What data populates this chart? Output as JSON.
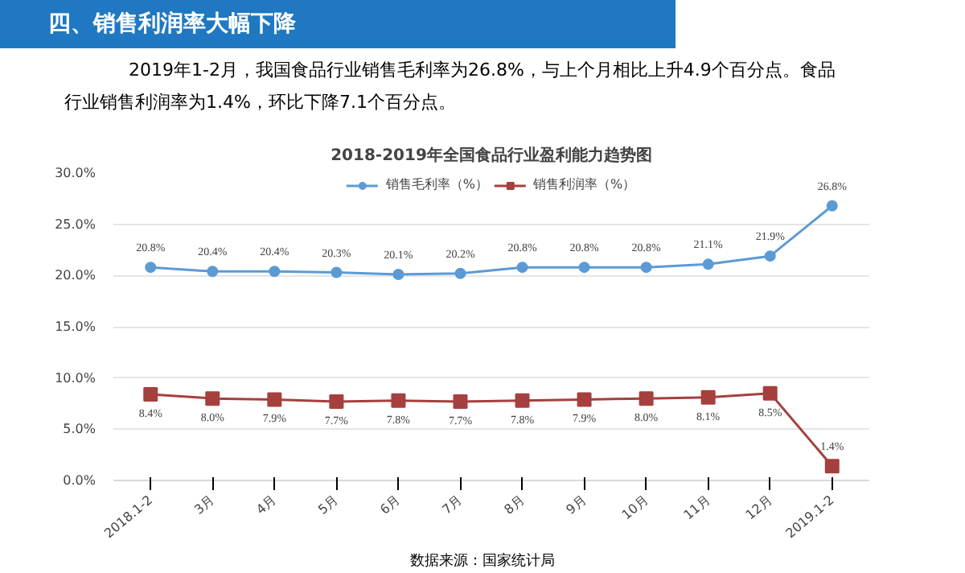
{
  "chart_data": {
    "type": "line",
    "title": "2018-2019年全国食品行业盈利能力趋势图",
    "annotations": [
      "四、销售利润率大幅下降",
      "2019年1-2月，我国食品行业销售毛利率为26.8%，与上个月相比上升4.9个百分点。食品行业销售利润率为1.4%，环比下降7.1个百分点。",
      "数据来源：国家统计局"
    ],
    "categories": [
      "2018.1-2",
      "3月",
      "4月",
      "5月",
      "6月",
      "7月",
      "8月",
      "9月",
      "10月",
      "11月",
      "12月",
      "2019.1-2"
    ],
    "series": [
      {
        "name": "销售毛利率（%）",
        "color": "#5b9bd5",
        "marker": "circle",
        "values": [
          20.8,
          20.4,
          20.4,
          20.3,
          20.1,
          20.2,
          20.8,
          20.8,
          20.8,
          21.1,
          21.9,
          26.8
        ],
        "value_labels": [
          "20.8%",
          "20.4%",
          "20.4%",
          "20.3%",
          "20.1%",
          "20.2%",
          "20.8%",
          "20.8%",
          "20.8%",
          "21.1%",
          "21.9%",
          "26.8%"
        ]
      },
      {
        "name": "销售利润率（%）",
        "color": "#a5403e",
        "marker": "square",
        "values": [
          8.4,
          8.0,
          7.9,
          7.7,
          7.8,
          7.7,
          7.8,
          7.9,
          8.0,
          8.1,
          8.5,
          1.4
        ],
        "value_labels": [
          "8.4%",
          "8.0%",
          "7.9%",
          "7.7%",
          "7.8%",
          "7.7%",
          "7.8%",
          "7.9%",
          "8.0%",
          "8.1%",
          "8.5%",
          "1.4%"
        ]
      }
    ],
    "ylim": [
      0,
      30
    ],
    "yticks": [
      {
        "value": 0,
        "label": "0.0%"
      },
      {
        "value": 5,
        "label": "5.0%"
      },
      {
        "value": 10,
        "label": "10.0%"
      },
      {
        "value": 15,
        "label": "15.0%"
      },
      {
        "value": 20,
        "label": "20.0%"
      },
      {
        "value": 25,
        "label": "25.0%"
      },
      {
        "value": 30,
        "label": "30.0%"
      }
    ],
    "grid": "y",
    "legend": "top"
  }
}
